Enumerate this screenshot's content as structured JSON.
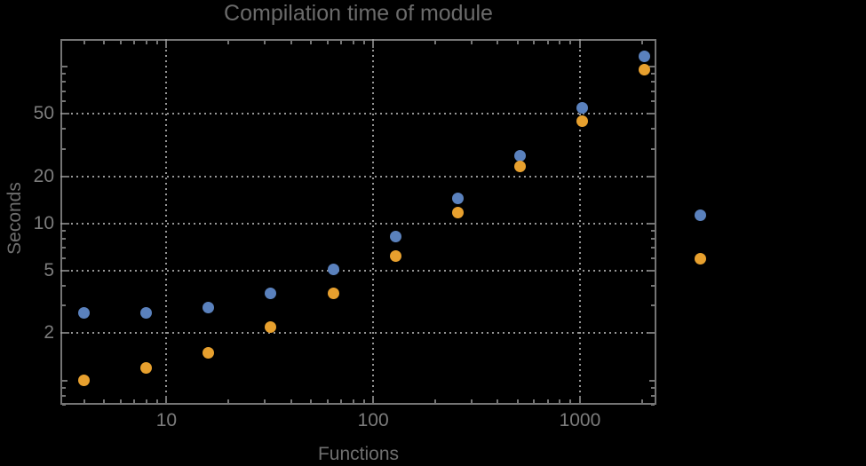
{
  "chart_data": {
    "type": "scatter",
    "title": "Compilation time of module",
    "xlabel": "Functions",
    "ylabel": "Seconds",
    "x_scale": "log",
    "y_scale": "log",
    "x": [
      4,
      8,
      16,
      32,
      64,
      128,
      256,
      512,
      1024,
      2048
    ],
    "series": [
      {
        "name": "blue",
        "color": "#5a81bd",
        "values": [
          2.7,
          2.7,
          2.9,
          3.6,
          5.1,
          8.3,
          14.4,
          27,
          55,
          117
        ]
      },
      {
        "name": "orange",
        "color": "#e7a02e",
        "values": [
          1.0,
          1.2,
          1.5,
          2.2,
          3.6,
          6.2,
          11.7,
          23,
          45,
          96
        ]
      }
    ],
    "x_ticks": [
      10,
      100,
      1000
    ],
    "y_ticks": [
      2,
      5,
      10,
      20,
      50
    ],
    "xlim": [
      3.07,
      2343
    ],
    "ylim": [
      0.7,
      150
    ],
    "grid": "dotted",
    "legend_position": "right-outside",
    "legend_markers": [
      {
        "name": "blue-series-marker",
        "color": "#5a81bd"
      },
      {
        "name": "orange-series-marker",
        "color": "#e7a02e"
      }
    ]
  }
}
